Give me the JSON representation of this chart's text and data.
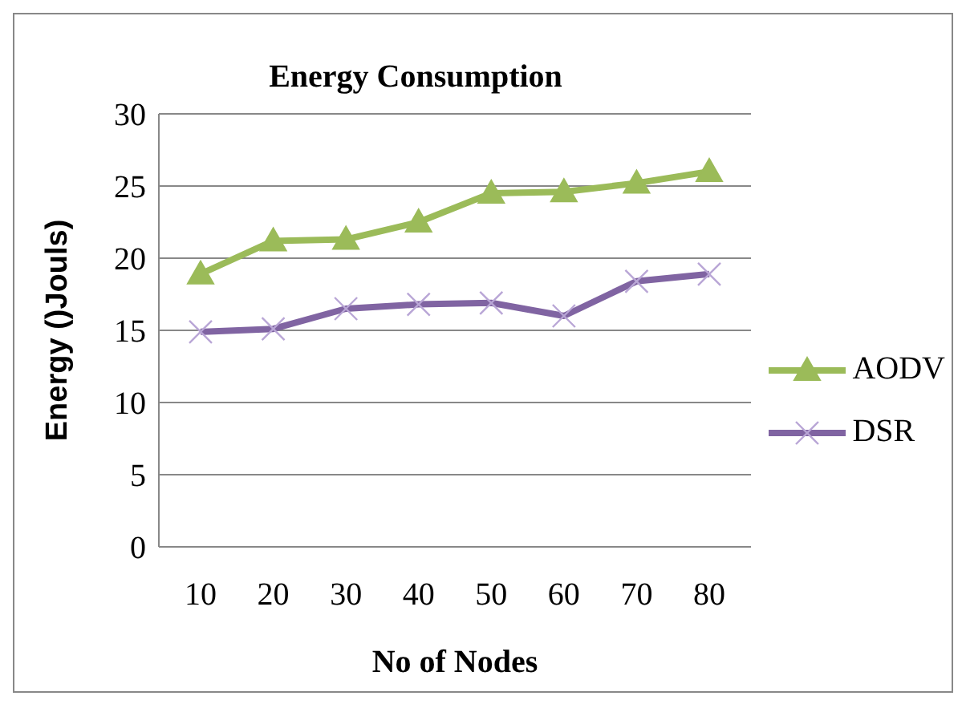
{
  "chart_data": {
    "type": "line",
    "title": "Energy Consumption",
    "xlabel": "No of Nodes",
    "ylabel": "Energy ()Jouls)",
    "categories": [
      "10",
      "20",
      "30",
      "40",
      "50",
      "60",
      "70",
      "80"
    ],
    "series": [
      {
        "name": "AODV",
        "color": "#9bbb59",
        "marker": "triangle",
        "values": [
          18.9,
          21.2,
          21.3,
          22.5,
          24.5,
          24.6,
          25.2,
          26.0
        ]
      },
      {
        "name": "DSR",
        "color": "#8064a2",
        "marker": "cross",
        "values": [
          14.9,
          15.1,
          16.5,
          16.8,
          16.9,
          16.0,
          18.4,
          18.9
        ]
      }
    ],
    "ylim": [
      0,
      30
    ],
    "yticks": [
      0,
      5,
      10,
      15,
      20,
      25,
      30
    ],
    "grid": "y",
    "legend": "right",
    "line_style": "solid"
  }
}
